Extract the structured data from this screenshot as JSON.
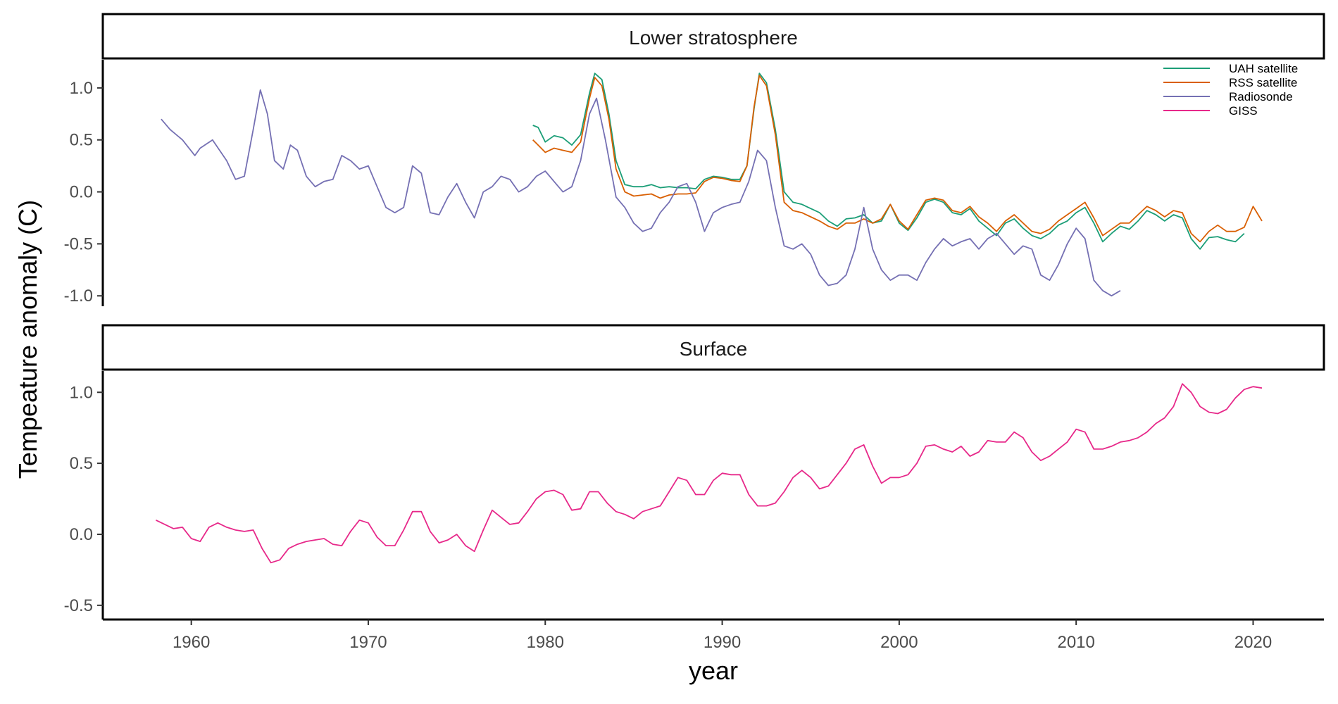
{
  "chart_data": {
    "type": "line",
    "xlabel": "year",
    "ylabel": "Tempeature anomaly (C)",
    "xlim": [
      1955,
      2024
    ],
    "x_ticks": [
      "1960",
      "1970",
      "1980",
      "1990",
      "2000",
      "2010",
      "2020"
    ],
    "legend_position": "top-right",
    "colors": {
      "UAH satellite": "#1b9e77",
      "RSS satellite": "#d95f02",
      "Radiosonde": "#7570b3",
      "GISS": "#e7298a"
    },
    "panels": [
      {
        "strip": "Lower stratosphere",
        "ylim": [
          -1.1,
          1.27
        ],
        "y_ticks": [
          "1.0",
          "0.5",
          "0.0",
          "-0.5",
          "-1.0"
        ],
        "series": [
          {
            "name": "UAH satellite",
            "x": [
              1979.3,
              1979.6,
              1980.0,
              1980.5,
              1981.0,
              1981.5,
              1982.0,
              1982.5,
              1982.8,
              1983.2,
              1983.6,
              1984.0,
              1984.5,
              1985.0,
              1985.5,
              1986.0,
              1986.5,
              1987.0,
              1987.5,
              1988.0,
              1988.5,
              1989.0,
              1989.5,
              1990.0,
              1990.5,
              1991.0,
              1991.4,
              1991.8,
              1992.1,
              1992.5,
              1993.0,
              1993.5,
              1994.0,
              1994.5,
              1995.0,
              1995.5,
              1996.0,
              1996.5,
              1997.0,
              1997.5,
              1998.0,
              1998.5,
              1999.0,
              1999.5,
              2000.0,
              2000.5,
              2001.0,
              2001.5,
              2002.0,
              2002.5,
              2003.0,
              2003.5,
              2004.0,
              2004.5,
              2005.0,
              2005.5,
              2006.0,
              2006.5,
              2007.0,
              2007.5,
              2008.0,
              2008.5,
              2009.0,
              2009.5,
              2010.0,
              2010.5,
              2011.0,
              2011.5,
              2012.0,
              2012.5,
              2013.0,
              2013.5,
              2014.0,
              2014.5,
              2015.0,
              2015.5,
              2016.0,
              2016.5,
              2017.0,
              2017.5,
              2018.0,
              2018.5,
              2019.0,
              2019.5
            ],
            "y": [
              0.64,
              0.62,
              0.48,
              0.54,
              0.52,
              0.45,
              0.55,
              0.95,
              1.14,
              1.08,
              0.75,
              0.3,
              0.07,
              0.05,
              0.05,
              0.07,
              0.04,
              0.05,
              0.04,
              0.04,
              0.03,
              0.12,
              0.15,
              0.14,
              0.12,
              0.12,
              0.25,
              0.8,
              1.14,
              1.05,
              0.6,
              0.0,
              -0.1,
              -0.12,
              -0.16,
              -0.2,
              -0.28,
              -0.33,
              -0.26,
              -0.25,
              -0.22,
              -0.3,
              -0.28,
              -0.12,
              -0.3,
              -0.37,
              -0.25,
              -0.1,
              -0.07,
              -0.1,
              -0.2,
              -0.22,
              -0.16,
              -0.28,
              -0.35,
              -0.42,
              -0.3,
              -0.26,
              -0.35,
              -0.42,
              -0.45,
              -0.4,
              -0.32,
              -0.28,
              -0.2,
              -0.15,
              -0.3,
              -0.48,
              -0.4,
              -0.33,
              -0.36,
              -0.28,
              -0.18,
              -0.22,
              -0.28,
              -0.22,
              -0.25,
              -0.45,
              -0.55,
              -0.44,
              -0.43,
              -0.46,
              -0.48,
              -0.4
            ]
          },
          {
            "name": "RSS satellite",
            "x": [
              1979.3,
              1979.6,
              1980.0,
              1980.5,
              1981.0,
              1981.5,
              1982.0,
              1982.5,
              1982.8,
              1983.2,
              1983.6,
              1984.0,
              1984.5,
              1985.0,
              1985.5,
              1986.0,
              1986.5,
              1987.0,
              1987.5,
              1988.0,
              1988.5,
              1989.0,
              1989.5,
              1990.0,
              1990.5,
              1991.0,
              1991.4,
              1991.8,
              1992.1,
              1992.5,
              1993.0,
              1993.5,
              1994.0,
              1994.5,
              1995.0,
              1995.5,
              1996.0,
              1996.5,
              1997.0,
              1997.5,
              1998.0,
              1998.5,
              1999.0,
              1999.5,
              2000.0,
              2000.5,
              2001.0,
              2001.5,
              2002.0,
              2002.5,
              2003.0,
              2003.5,
              2004.0,
              2004.5,
              2005.0,
              2005.5,
              2006.0,
              2006.5,
              2007.0,
              2007.5,
              2008.0,
              2008.5,
              2009.0,
              2009.5,
              2010.0,
              2010.5,
              2011.0,
              2011.5,
              2012.0,
              2012.5,
              2013.0,
              2013.5,
              2014.0,
              2014.5,
              2015.0,
              2015.5,
              2016.0,
              2016.5,
              2017.0,
              2017.5,
              2018.0,
              2018.5,
              2019.0,
              2019.5,
              2020.0,
              2020.5
            ],
            "y": [
              0.5,
              0.45,
              0.38,
              0.42,
              0.4,
              0.38,
              0.48,
              0.9,
              1.1,
              1.02,
              0.7,
              0.22,
              0.0,
              -0.04,
              -0.03,
              -0.02,
              -0.06,
              -0.03,
              -0.02,
              -0.02,
              -0.01,
              0.1,
              0.14,
              0.13,
              0.11,
              0.1,
              0.25,
              0.82,
              1.12,
              1.02,
              0.55,
              -0.1,
              -0.18,
              -0.2,
              -0.24,
              -0.28,
              -0.33,
              -0.36,
              -0.3,
              -0.3,
              -0.26,
              -0.3,
              -0.26,
              -0.12,
              -0.28,
              -0.36,
              -0.22,
              -0.08,
              -0.06,
              -0.08,
              -0.18,
              -0.2,
              -0.14,
              -0.24,
              -0.3,
              -0.38,
              -0.28,
              -0.22,
              -0.3,
              -0.38,
              -0.4,
              -0.36,
              -0.28,
              -0.22,
              -0.16,
              -0.1,
              -0.25,
              -0.42,
              -0.36,
              -0.3,
              -0.3,
              -0.22,
              -0.14,
              -0.18,
              -0.24,
              -0.18,
              -0.2,
              -0.4,
              -0.48,
              -0.38,
              -0.32,
              -0.38,
              -0.38,
              -0.34,
              -0.14,
              -0.28
            ]
          },
          {
            "name": "Radiosonde",
            "x": [
              1958.3,
              1958.8,
              1959.5,
              1960.2,
              1960.5,
              1961.2,
              1962.0,
              1962.5,
              1963.0,
              1963.5,
              1963.9,
              1964.3,
              1964.7,
              1965.2,
              1965.6,
              1966.0,
              1966.5,
              1967.0,
              1967.5,
              1968.0,
              1968.5,
              1969.0,
              1969.5,
              1970.0,
              1970.5,
              1971.0,
              1971.5,
              1972.0,
              1972.5,
              1973.0,
              1973.5,
              1974.0,
              1974.5,
              1975.0,
              1975.5,
              1976.0,
              1976.5,
              1977.0,
              1977.5,
              1978.0,
              1978.5,
              1979.0,
              1979.5,
              1980.0,
              1980.5,
              1981.0,
              1981.5,
              1982.0,
              1982.5,
              1982.9,
              1983.4,
              1984.0,
              1984.5,
              1985.0,
              1985.5,
              1986.0,
              1986.5,
              1987.0,
              1987.5,
              1988.0,
              1988.5,
              1989.0,
              1989.5,
              1990.0,
              1990.5,
              1991.0,
              1991.5,
              1992.0,
              1992.5,
              1993.0,
              1993.5,
              1994.0,
              1994.5,
              1995.0,
              1995.5,
              1996.0,
              1996.5,
              1997.0,
              1997.5,
              1998.0,
              1998.5,
              1999.0,
              1999.5,
              2000.0,
              2000.5,
              2001.0,
              2001.5,
              2002.0,
              2002.5,
              2003.0,
              2003.5,
              2004.0,
              2004.5,
              2005.0,
              2005.5,
              2006.0,
              2006.5,
              2007.0,
              2007.5,
              2008.0,
              2008.5,
              2009.0,
              2009.5,
              2010.0,
              2010.5,
              2011.0,
              2011.5,
              2012.0,
              2012.5
            ],
            "y": [
              0.7,
              0.6,
              0.5,
              0.35,
              0.42,
              0.5,
              0.3,
              0.12,
              0.15,
              0.6,
              0.98,
              0.75,
              0.3,
              0.22,
              0.45,
              0.4,
              0.15,
              0.05,
              0.1,
              0.12,
              0.35,
              0.3,
              0.22,
              0.25,
              0.05,
              -0.15,
              -0.2,
              -0.15,
              0.25,
              0.18,
              -0.2,
              -0.22,
              -0.05,
              0.08,
              -0.1,
              -0.25,
              0.0,
              0.05,
              0.15,
              0.12,
              0.0,
              0.05,
              0.15,
              0.2,
              0.1,
              0.0,
              0.05,
              0.3,
              0.75,
              0.9,
              0.5,
              -0.05,
              -0.15,
              -0.3,
              -0.38,
              -0.35,
              -0.2,
              -0.1,
              0.05,
              0.08,
              -0.1,
              -0.38,
              -0.2,
              -0.15,
              -0.12,
              -0.1,
              0.1,
              0.4,
              0.3,
              -0.15,
              -0.52,
              -0.55,
              -0.5,
              -0.6,
              -0.8,
              -0.9,
              -0.88,
              -0.8,
              -0.55,
              -0.15,
              -0.55,
              -0.75,
              -0.85,
              -0.8,
              -0.8,
              -0.85,
              -0.68,
              -0.55,
              -0.45,
              -0.52,
              -0.48,
              -0.45,
              -0.55,
              -0.45,
              -0.4,
              -0.5,
              -0.6,
              -0.52,
              -0.55,
              -0.8,
              -0.85,
              -0.7,
              -0.5,
              -0.35,
              -0.45,
              -0.85,
              -0.95,
              -1.0,
              -0.95
            ]
          }
        ]
      },
      {
        "strip": "Surface",
        "ylim": [
          -0.6,
          1.15
        ],
        "y_ticks": [
          "1.0",
          "0.5",
          "0.0",
          "-0.5"
        ],
        "series": [
          {
            "name": "GISS",
            "x": [
              1958.0,
              1958.5,
              1959.0,
              1959.5,
              1960.0,
              1960.5,
              1961.0,
              1961.5,
              1962.0,
              1962.5,
              1963.0,
              1963.5,
              1964.0,
              1964.5,
              1965.0,
              1965.5,
              1966.0,
              1966.5,
              1967.0,
              1967.5,
              1968.0,
              1968.5,
              1969.0,
              1969.5,
              1970.0,
              1970.5,
              1971.0,
              1971.5,
              1972.0,
              1972.5,
              1973.0,
              1973.5,
              1974.0,
              1974.5,
              1975.0,
              1975.5,
              1976.0,
              1976.5,
              1977.0,
              1977.5,
              1978.0,
              1978.5,
              1979.0,
              1979.5,
              1980.0,
              1980.5,
              1981.0,
              1981.5,
              1982.0,
              1982.5,
              1983.0,
              1983.5,
              1984.0,
              1984.5,
              1985.0,
              1985.5,
              1986.0,
              1986.5,
              1987.0,
              1987.5,
              1988.0,
              1988.5,
              1989.0,
              1989.5,
              1990.0,
              1990.5,
              1991.0,
              1991.5,
              1992.0,
              1992.5,
              1993.0,
              1993.5,
              1994.0,
              1994.5,
              1995.0,
              1995.5,
              1996.0,
              1996.5,
              1997.0,
              1997.5,
              1998.0,
              1998.5,
              1999.0,
              1999.5,
              2000.0,
              2000.5,
              2001.0,
              2001.5,
              2002.0,
              2002.5,
              2003.0,
              2003.5,
              2004.0,
              2004.5,
              2005.0,
              2005.5,
              2006.0,
              2006.5,
              2007.0,
              2007.5,
              2008.0,
              2008.5,
              2009.0,
              2009.5,
              2010.0,
              2010.5,
              2011.0,
              2011.5,
              2012.0,
              2012.5,
              2013.0,
              2013.5,
              2014.0,
              2014.5,
              2015.0,
              2015.5,
              2016.0,
              2016.5,
              2017.0,
              2017.5,
              2018.0,
              2018.5,
              2019.0,
              2019.5,
              2020.0,
              2020.5
            ],
            "y": [
              0.1,
              0.07,
              0.04,
              0.05,
              -0.03,
              -0.05,
              0.05,
              0.08,
              0.05,
              0.03,
              0.02,
              0.03,
              -0.1,
              -0.2,
              -0.18,
              -0.1,
              -0.07,
              -0.05,
              -0.04,
              -0.03,
              -0.07,
              -0.08,
              0.02,
              0.1,
              0.08,
              -0.02,
              -0.08,
              -0.08,
              0.03,
              0.16,
              0.16,
              0.02,
              -0.06,
              -0.04,
              0.0,
              -0.08,
              -0.12,
              0.03,
              0.17,
              0.12,
              0.07,
              0.08,
              0.16,
              0.25,
              0.3,
              0.31,
              0.28,
              0.17,
              0.18,
              0.3,
              0.3,
              0.22,
              0.16,
              0.14,
              0.11,
              0.16,
              0.18,
              0.2,
              0.3,
              0.4,
              0.38,
              0.28,
              0.28,
              0.38,
              0.43,
              0.42,
              0.42,
              0.28,
              0.2,
              0.2,
              0.22,
              0.3,
              0.4,
              0.45,
              0.4,
              0.32,
              0.34,
              0.42,
              0.5,
              0.6,
              0.63,
              0.48,
              0.36,
              0.4,
              0.4,
              0.42,
              0.5,
              0.62,
              0.63,
              0.6,
              0.58,
              0.62,
              0.55,
              0.58,
              0.66,
              0.65,
              0.65,
              0.72,
              0.68,
              0.58,
              0.52,
              0.55,
              0.6,
              0.65,
              0.74,
              0.72,
              0.6,
              0.6,
              0.62,
              0.65,
              0.66,
              0.68,
              0.72,
              0.78,
              0.82,
              0.9,
              1.06,
              1.0,
              0.9,
              0.86,
              0.85,
              0.88,
              0.96,
              1.02,
              1.04,
              1.03
            ]
          }
        ]
      }
    ]
  }
}
